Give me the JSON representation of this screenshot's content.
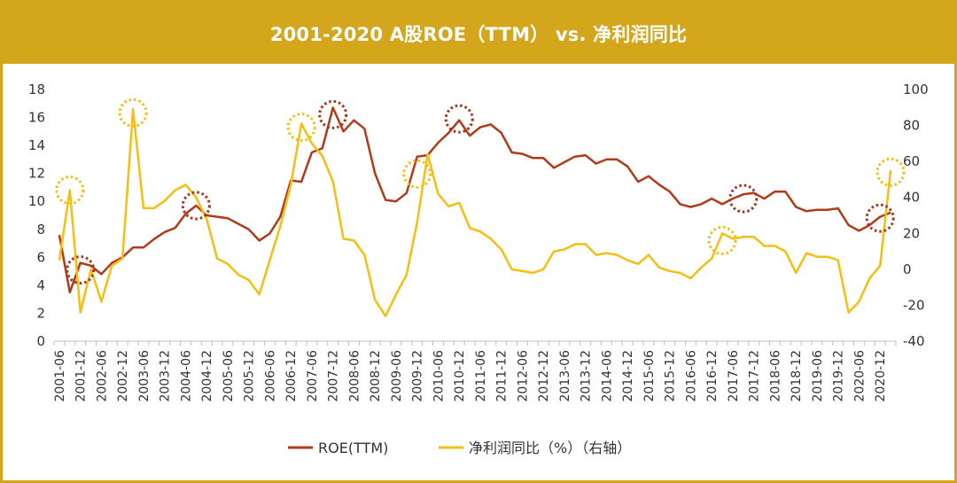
{
  "chart_data": {
    "type": "line",
    "title": "2001-2020 A股ROE（TTM） vs. 净利润同比",
    "xlabel": "",
    "ylabel": "",
    "x_labels": [
      "2001-06",
      "2001-12",
      "2002-06",
      "2002-12",
      "2003-06",
      "2003-12",
      "2004-06",
      "2004-12",
      "2005-06",
      "2005-12",
      "2006-06",
      "2006-12",
      "2007-06",
      "2007-12",
      "2008-06",
      "2008-12",
      "2009-06",
      "2009-12",
      "2010-06",
      "2010-12",
      "2011-06",
      "2011-12",
      "2012-06",
      "2012-12",
      "2013-06",
      "2013-12",
      "2014-06",
      "2014-12",
      "2015-06",
      "2015-12",
      "2016-06",
      "2016-12",
      "2017-06",
      "2017-12",
      "2018-06",
      "2018-12",
      "2019-06",
      "2019-12",
      "2020-06",
      "2020-12"
    ],
    "x": [
      "2001-06",
      "2001-09",
      "2001-12",
      "2002-03",
      "2002-06",
      "2002-09",
      "2002-12",
      "2003-03",
      "2003-06",
      "2003-09",
      "2003-12",
      "2004-03",
      "2004-06",
      "2004-09",
      "2004-12",
      "2005-03",
      "2005-06",
      "2005-09",
      "2005-12",
      "2006-03",
      "2006-06",
      "2006-09",
      "2006-12",
      "2007-03",
      "2007-06",
      "2007-09",
      "2007-12",
      "2008-03",
      "2008-06",
      "2008-09",
      "2008-12",
      "2009-03",
      "2009-06",
      "2009-09",
      "2009-12",
      "2010-03",
      "2010-06",
      "2010-09",
      "2010-12",
      "2011-03",
      "2011-06",
      "2011-09",
      "2011-12",
      "2012-03",
      "2012-06",
      "2012-09",
      "2012-12",
      "2013-03",
      "2013-06",
      "2013-09",
      "2013-12",
      "2014-03",
      "2014-06",
      "2014-09",
      "2014-12",
      "2015-03",
      "2015-06",
      "2015-09",
      "2015-12",
      "2016-03",
      "2016-06",
      "2016-09",
      "2016-12",
      "2017-03",
      "2017-06",
      "2017-09",
      "2017-12",
      "2018-03",
      "2018-06",
      "2018-09",
      "2018-12",
      "2019-03",
      "2019-06",
      "2019-09",
      "2019-12",
      "2020-03",
      "2020-06",
      "2020-09",
      "2020-12",
      "2021-03"
    ],
    "y_left": {
      "min": 0,
      "max": 18,
      "ticks": [
        0,
        2,
        4,
        6,
        8,
        10,
        12,
        14,
        16,
        18
      ]
    },
    "y_right": {
      "min": -40,
      "max": 100,
      "ticks": [
        -40,
        -20,
        0,
        20,
        40,
        60,
        80,
        100
      ]
    },
    "series": [
      {
        "name": "ROE(TTM)",
        "axis": "left",
        "color": "#b03a1a",
        "values": [
          7.6,
          3.5,
          5.6,
          5.4,
          4.8,
          5.6,
          6.0,
          6.7,
          6.7,
          7.3,
          7.8,
          8.1,
          9.1,
          9.7,
          9.0,
          8.9,
          8.8,
          8.4,
          8.0,
          7.2,
          7.7,
          8.9,
          11.5,
          11.4,
          13.5,
          13.8,
          16.7,
          15.0,
          15.8,
          15.2,
          12.0,
          10.1,
          10.0,
          10.6,
          13.2,
          13.3,
          14.2,
          14.9,
          15.8,
          14.7,
          15.3,
          15.5,
          14.9,
          13.5,
          13.4,
          13.1,
          13.1,
          12.4,
          12.8,
          13.2,
          13.3,
          12.7,
          13.0,
          13.0,
          12.5,
          11.4,
          11.8,
          11.2,
          10.7,
          9.8,
          9.6,
          9.8,
          10.2,
          9.8,
          10.2,
          10.5,
          10.6,
          10.2,
          10.7,
          10.7,
          9.6,
          9.3,
          9.4,
          9.4,
          9.5,
          8.3,
          7.9,
          8.3,
          8.9,
          9.2
        ]
      },
      {
        "name": "净利润同比（%）（右轴）",
        "axis": "right",
        "color": "#f5be12",
        "values": [
          5,
          44,
          -24,
          0,
          -18,
          2,
          6,
          89,
          34,
          34,
          38,
          44,
          47,
          40,
          28,
          6,
          3,
          -3,
          -6,
          -14,
          5,
          24,
          47,
          81,
          70,
          63,
          49,
          17,
          16,
          8,
          -17,
          -26,
          -14,
          -3,
          26,
          64,
          42,
          35,
          37,
          23,
          21,
          17,
          11,
          0,
          -1,
          -2,
          0,
          10,
          11,
          14,
          14,
          8,
          9,
          8,
          5,
          3,
          8,
          1,
          -1,
          -2,
          -5,
          1,
          6,
          20,
          17,
          18,
          18,
          13,
          13,
          10,
          -2,
          9,
          7,
          7,
          5,
          -24,
          -18,
          -5,
          2,
          55
        ]
      }
    ],
    "annotations": [
      {
        "axis": "left",
        "x": "2001-12",
        "y": 5.1,
        "color": "#a3341c"
      },
      {
        "axis": "left",
        "x": "2004-09",
        "y": 9.7,
        "color": "#a3341c"
      },
      {
        "axis": "left",
        "x": "2007-12",
        "y": 16.2,
        "color": "#a3341c"
      },
      {
        "axis": "left",
        "x": "2010-12",
        "y": 15.9,
        "color": "#a3341c"
      },
      {
        "axis": "left",
        "x": "2017-09",
        "y": 10.2,
        "color": "#a3341c"
      },
      {
        "axis": "left",
        "x": "2020-12",
        "y": 8.8,
        "color": "#a3341c"
      },
      {
        "axis": "right",
        "x": "2001-09",
        "y": 44,
        "color": "#f5be12"
      },
      {
        "axis": "right",
        "x": "2003-03",
        "y": 87,
        "color": "#f5be12"
      },
      {
        "axis": "right",
        "x": "2007-03",
        "y": 79,
        "color": "#f5be12"
      },
      {
        "axis": "right",
        "x": "2009-12",
        "y": 53,
        "color": "#f5be12"
      },
      {
        "axis": "right",
        "x": "2017-03",
        "y": 16,
        "color": "#f5be12"
      },
      {
        "axis": "right",
        "x": "2021-03",
        "y": 54,
        "color": "#f5be12"
      }
    ],
    "legend": {
      "position": "bottom-center",
      "entries": [
        "ROE(TTM)",
        "净利润同比（%）（右轴）"
      ]
    },
    "grid": false
  }
}
